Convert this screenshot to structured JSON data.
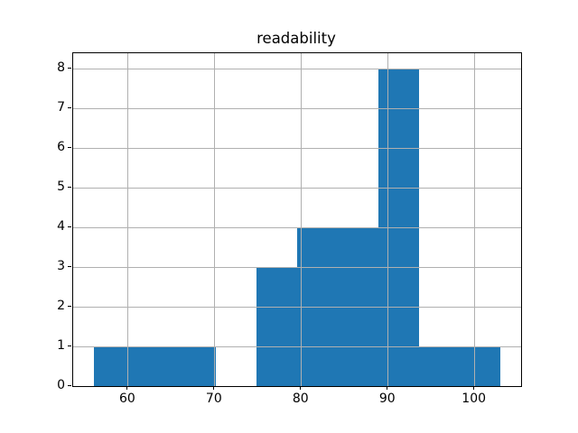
{
  "chart_data": {
    "type": "bar",
    "subtype": "histogram",
    "title": "readability",
    "xlabel": "",
    "ylabel": "",
    "bin_edges": [
      56,
      60.7,
      65.4,
      70.1,
      74.8,
      79.5,
      84.2,
      88.9,
      93.6,
      98.3,
      103
    ],
    "counts": [
      1,
      1,
      1,
      0,
      3,
      4,
      4,
      8,
      1,
      1
    ],
    "x_ticks": [
      60,
      70,
      80,
      90,
      100
    ],
    "y_ticks": [
      0,
      1,
      2,
      3,
      4,
      5,
      6,
      7,
      8
    ],
    "xlim": [
      53.65,
      105.35
    ],
    "ylim": [
      0,
      8.4
    ],
    "grid": true,
    "grid_over_bars": true,
    "legend": false,
    "bar_color": "#1f77b4",
    "grid_color": "#b0b0b0",
    "spine_color": "#000000",
    "text_color": "#000000",
    "background_color": "#ffffff"
  }
}
